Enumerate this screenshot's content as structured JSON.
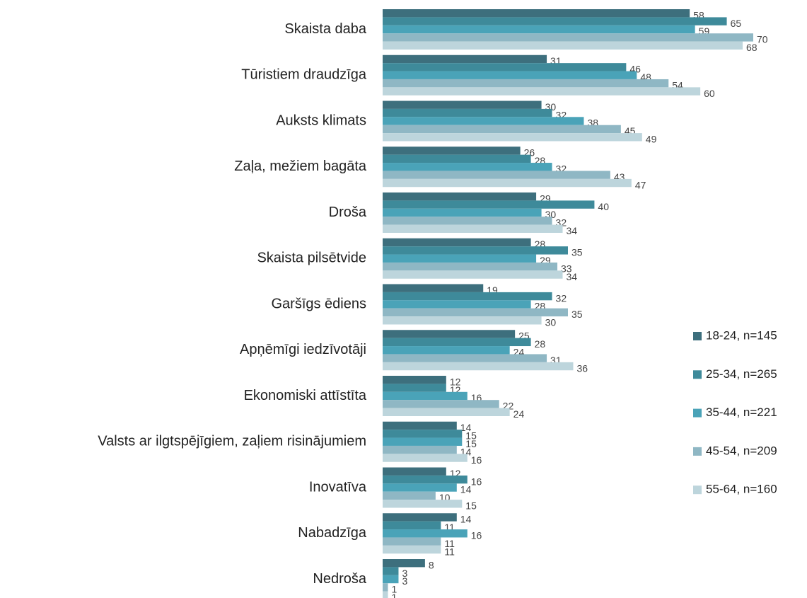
{
  "chart_data": {
    "type": "hbar",
    "categories": [
      "Skaista daba",
      "Tūristiem draudzīga",
      "Auksts klimats",
      "Zaļa, mežiem bagāta",
      "Droša",
      "Skaista pilsētvide",
      "Garšīgs ēdiens",
      "Apņēmīgi iedzīvotāji",
      "Ekonomiski attīstīta",
      "Valsts ar ilgtspējīgiem, zaļiem risinājumiem",
      "Inovatīva",
      "Nabadzīga",
      "Nedroša"
    ],
    "series": [
      {
        "name": "18-24, n=145",
        "color": "#3d6f7d",
        "values": [
          58,
          31,
          30,
          26,
          29,
          28,
          19,
          25,
          12,
          14,
          12,
          14,
          8
        ]
      },
      {
        "name": "25-34, n=265",
        "color": "#3e8a9a",
        "values": [
          65,
          46,
          32,
          28,
          40,
          35,
          32,
          28,
          12,
          15,
          16,
          11,
          3
        ]
      },
      {
        "name": "35-44, n=221",
        "color": "#4aa3b8",
        "values": [
          59,
          48,
          38,
          32,
          30,
          29,
          28,
          24,
          16,
          15,
          14,
          16,
          3
        ]
      },
      {
        "name": "45-54, n=209",
        "color": "#8fb7c4",
        "values": [
          70,
          54,
          45,
          43,
          32,
          33,
          35,
          31,
          22,
          14,
          10,
          11,
          1
        ]
      },
      {
        "name": "55-64, n=160",
        "color": "#bdd5dc",
        "values": [
          68,
          60,
          49,
          47,
          34,
          34,
          30,
          36,
          24,
          16,
          15,
          11,
          1
        ]
      }
    ],
    "xlim": [
      0,
      70
    ],
    "legend": "right"
  }
}
